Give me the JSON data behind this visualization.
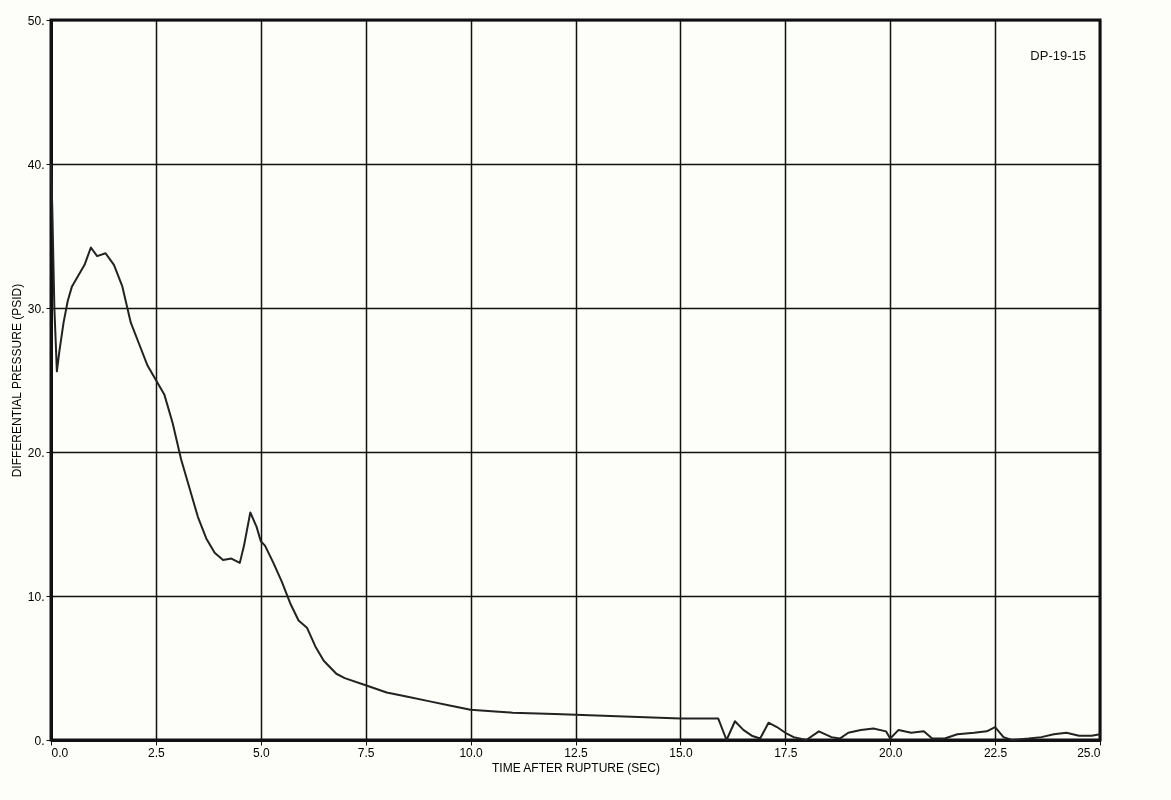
{
  "chart_data": {
    "type": "line",
    "xlabel": "TIME AFTER RUPTURE (SEC)",
    "ylabel": "DIFFERENTIAL PRESSURE (PSID)",
    "annotations": [
      "DP-19-15"
    ],
    "x": [
      0.0,
      0.03,
      0.08,
      0.14,
      0.2,
      0.3,
      0.4,
      0.5,
      0.6,
      0.8,
      0.95,
      1.1,
      1.3,
      1.5,
      1.7,
      1.9,
      2.1,
      2.3,
      2.5,
      2.7,
      2.9,
      3.1,
      3.3,
      3.5,
      3.7,
      3.9,
      4.1,
      4.3,
      4.5,
      4.6,
      4.75,
      4.9,
      5.0,
      5.1,
      5.3,
      5.5,
      5.7,
      5.9,
      6.1,
      6.3,
      6.5,
      6.8,
      7.0,
      7.5,
      8.0,
      8.5,
      9.0,
      9.5,
      10.0,
      10.5,
      11.0,
      12.0,
      13.0,
      14.0,
      15.0,
      15.9,
      16.1,
      16.3,
      16.5,
      16.7,
      16.9,
      17.1,
      17.3,
      17.5,
      17.7,
      18.0,
      18.3,
      18.6,
      18.8,
      19.0,
      19.3,
      19.6,
      19.9,
      20.0,
      20.2,
      20.5,
      20.8,
      21.0,
      21.3,
      21.6,
      22.0,
      22.3,
      22.5,
      22.7,
      22.9,
      23.3,
      23.6,
      23.9,
      24.2,
      24.5,
      24.8,
      25.0
    ],
    "values": [
      40,
      37,
      30,
      25.6,
      27,
      29,
      30.5,
      31.5,
      32,
      33,
      34.2,
      33.6,
      33.8,
      33,
      31.5,
      29,
      27.5,
      26,
      25,
      24,
      22,
      19.5,
      17.5,
      15.5,
      14,
      13,
      12.5,
      12.6,
      12.3,
      13.5,
      15.8,
      14.8,
      13.8,
      13.5,
      12.3,
      11,
      9.5,
      8.3,
      7.8,
      6.5,
      5.5,
      4.6,
      4.3,
      3.8,
      3.3,
      3,
      2.7,
      2.4,
      2.1,
      2.0,
      1.9,
      1.8,
      1.7,
      1.6,
      1.5,
      1.5,
      0,
      1.3,
      0.7,
      0.3,
      0.1,
      1.2,
      0.9,
      0.5,
      0.2,
      0,
      0.6,
      0.2,
      0.1,
      0.5,
      0.7,
      0.8,
      0.6,
      0.1,
      0.7,
      0.5,
      0.6,
      0.1,
      0.1,
      0.4,
      0.5,
      0.6,
      0.9,
      0.2,
      0,
      0.1,
      0.2,
      0.4,
      0.5,
      0.3,
      0.3,
      0.4
    ],
    "color": "#222222",
    "xlim": [
      0,
      25
    ],
    "ylim": [
      0,
      50
    ],
    "xticks": [
      {
        "value": 0,
        "label": "0.0"
      },
      2.5,
      {
        "value": 5,
        "label": "5.0"
      },
      7.5,
      {
        "value": 10,
        "label": "10.0"
      },
      12.5,
      {
        "value": 15,
        "label": "15.0"
      },
      17.5,
      {
        "value": 20,
        "label": "20.0"
      },
      22.5,
      {
        "value": 25,
        "label": "25.0"
      }
    ],
    "yticks": [
      {
        "value": 0,
        "label": "0."
      },
      {
        "value": 10,
        "label": "10."
      },
      {
        "value": 20,
        "label": "20."
      },
      {
        "value": 30,
        "label": "30."
      },
      {
        "value": 40,
        "label": "40."
      },
      {
        "value": 50,
        "label": "50."
      }
    ],
    "grid": true,
    "marker": "none",
    "line_style": "solid"
  }
}
